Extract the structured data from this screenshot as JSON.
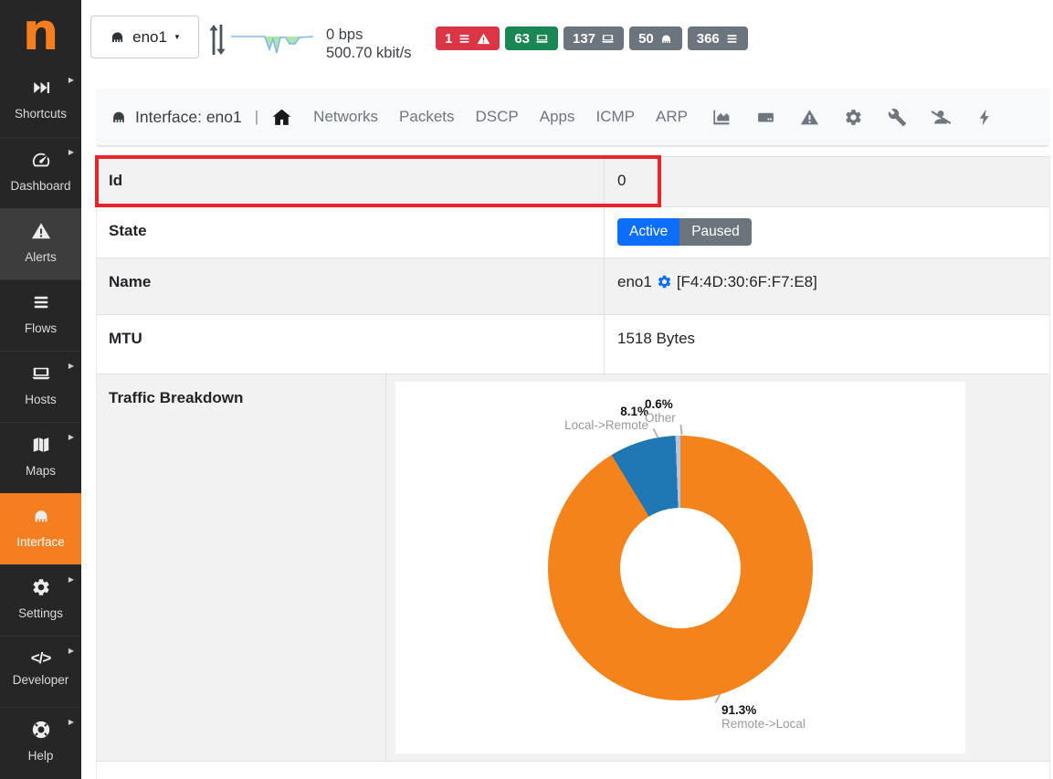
{
  "glyphs": {
    "caret_down": "▼",
    "caret_right": "▶",
    "code_icon_text": "</>"
  },
  "colors": {
    "sidebar_bg": "#262626",
    "sidebar_highlight": "#3d3d3d",
    "brand_orange": "#f47e20",
    "badge_red": "#dc3545",
    "badge_green": "#198754",
    "badge_gray": "#6c757d",
    "button_active_blue": "#0d6efd",
    "button_paused_gray": "#6c757d",
    "annotation_red": "#e9242b",
    "row_stripe": "#f2f2f2"
  },
  "sidebar": {
    "logo": "n",
    "items": [
      {
        "label": "Shortcuts",
        "icon": "fast-forward-icon",
        "caret": true,
        "state": "normal"
      },
      {
        "label": "Dashboard",
        "icon": "speedometer-icon",
        "caret": true,
        "state": "normal"
      },
      {
        "label": "Alerts",
        "icon": "warning-triangle-icon",
        "caret": false,
        "state": "highlighted"
      },
      {
        "label": "Flows",
        "icon": "bars-icon",
        "caret": false,
        "state": "normal"
      },
      {
        "label": "Hosts",
        "icon": "laptop-icon",
        "caret": true,
        "state": "normal"
      },
      {
        "label": "Maps",
        "icon": "map-icon",
        "caret": true,
        "state": "normal"
      },
      {
        "label": "Interface",
        "icon": "ethernet-icon",
        "caret": false,
        "state": "active"
      },
      {
        "label": "Settings",
        "icon": "gear-icon",
        "caret": true,
        "state": "normal"
      },
      {
        "label": "Developer",
        "icon": "code-icon",
        "caret": true,
        "state": "normal"
      },
      {
        "label": "Help",
        "icon": "life-ring-icon",
        "caret": true,
        "state": "normal"
      }
    ]
  },
  "header": {
    "interface_dropdown": {
      "label": "eno1",
      "icon": "ethernet-icon",
      "caret": "down"
    },
    "throughput": {
      "upload": "0 bps",
      "download": "500.70 kbit/s",
      "icon": "up-down-arrows-icon"
    },
    "badges": [
      {
        "name": "engaged-alerts",
        "value": "1",
        "color": "red",
        "icons": [
          "list-icon",
          "warning-triangle-icon"
        ]
      },
      {
        "name": "active-hosts",
        "value": "63",
        "color": "green",
        "icons": [
          "laptop-icon"
        ]
      },
      {
        "name": "total-hosts",
        "value": "137",
        "color": "gray",
        "icons": [
          "laptop-icon"
        ]
      },
      {
        "name": "devices",
        "value": "50",
        "color": "gray",
        "icons": [
          "ethernet-icon"
        ]
      },
      {
        "name": "flows",
        "value": "366",
        "color": "gray",
        "icons": [
          "list-icon"
        ]
      }
    ]
  },
  "navbar": {
    "title": "Interface: eno1",
    "title_icon": "ethernet-icon",
    "separator": "|",
    "home_icon": "home-icon",
    "links": [
      "Networks",
      "Packets",
      "DSCP",
      "Apps",
      "ICMP",
      "ARP"
    ],
    "icon_links": [
      "chart-area-icon",
      "hard-drive-icon",
      "warning-triangle-icon",
      "gear-icon",
      "wrench-icon",
      "user-slash-icon",
      "bolt-icon"
    ]
  },
  "table": {
    "rows": [
      {
        "label": "Id",
        "value": "0",
        "annotated": true
      },
      {
        "label": "State",
        "buttons": [
          {
            "label": "Active",
            "selected": true
          },
          {
            "label": "Paused",
            "selected": false
          }
        ]
      },
      {
        "label": "Name",
        "value": "eno1",
        "gear_icon": "gear-icon",
        "mac": "[F4:4D:30:6F:F7:E8]"
      },
      {
        "label": "MTU",
        "value": "1518 Bytes"
      },
      {
        "label": "Traffic Breakdown",
        "value_type": "donut-chart"
      }
    ]
  },
  "chart_data": [
    {
      "type": "pie",
      "donut": true,
      "title": "Traffic Breakdown",
      "slices": [
        {
          "label": "Remote->Local",
          "value": 91.3,
          "pct": "91.3%",
          "color": "#f5831c"
        },
        {
          "label": "Local->Remote",
          "value": 8.1,
          "pct": "8.1%",
          "color": "#1f77b4"
        },
        {
          "label": "Other",
          "value": 0.6,
          "pct": "0.6%",
          "color": "#aec7e8"
        }
      ],
      "start_angle_deg": 0,
      "direction": "clockwise",
      "inner_radius_ratio": 0.455,
      "legend_position": "callout-labels",
      "background": "#ffffff"
    },
    {
      "type": "area",
      "name": "header-throughput-sparkline",
      "points": [
        [
          1,
          7
        ],
        [
          38,
          7
        ],
        [
          43,
          21
        ],
        [
          47,
          10
        ],
        [
          51,
          25
        ],
        [
          55,
          8
        ],
        [
          61,
          8
        ],
        [
          65,
          15
        ],
        [
          71,
          15
        ],
        [
          76,
          8
        ],
        [
          91,
          7
        ]
      ],
      "width": 92,
      "height": 27,
      "baseline": "top",
      "line_color": "#83b7e8",
      "fill_color": "#9fe0a0"
    }
  ]
}
